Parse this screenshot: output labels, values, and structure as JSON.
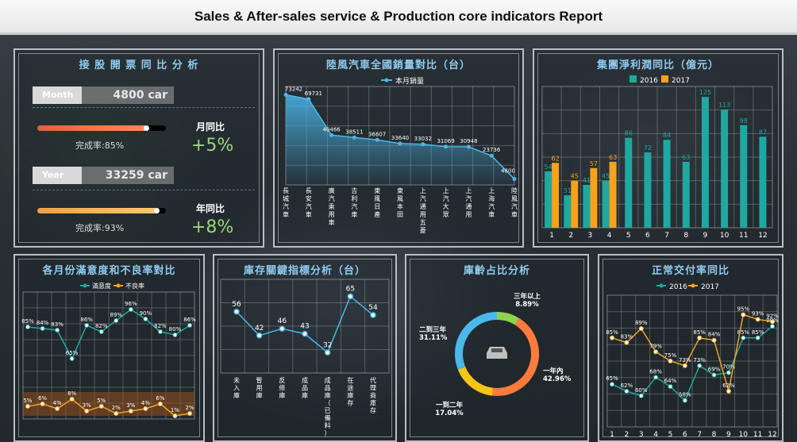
{
  "report_title": "Sales & After-sales service & Production core indicators Report",
  "kpi": {
    "title": "接 股 開 票 同 比 分 析",
    "month_label": "Month",
    "month_value": "4800 car",
    "month_progress_text": "完成率:85%",
    "month_progress": 0.85,
    "month_growth_label": "月同比",
    "month_growth_value": "+5%",
    "year_label": "Year",
    "year_value": "33259 car",
    "year_progress_text": "完成率:93%",
    "year_progress": 0.93,
    "year_growth_label": "年同比",
    "year_growth_value": "+8%"
  },
  "colors": {
    "teal": "#1fa8a0",
    "orange": "#f7a21b",
    "blue": "#4ab8ea",
    "green_bar": "#92d050",
    "orange_bar": "#ff7a3d",
    "yellow": "#f5c518",
    "bg_panel": "#1e262c"
  },
  "chart_data": [
    {
      "id": "sales",
      "type": "area",
      "title": "陸風汽車全國銷量對比（台）",
      "legend": [
        "本月銷量"
      ],
      "categories": [
        "長城汽車",
        "長安汽車",
        "廣汽乘用車",
        "吉利汽車",
        "東風日產",
        "東風本田",
        "上汽通用五菱",
        "上汽大眾",
        "上汽通用",
        "上海汽車",
        "陸風汽車"
      ],
      "values": [
        73242,
        69731,
        40466,
        38511,
        36607,
        33640,
        33032,
        31069,
        30948,
        23736,
        4800
      ],
      "ylim": [
        0,
        80000
      ]
    },
    {
      "id": "profit",
      "type": "bar",
      "title": "集團淨利潤同比（億元）",
      "categories": [
        "1",
        "2",
        "3",
        "4",
        "5",
        "6",
        "7",
        "8",
        "9",
        "10",
        "11",
        "12"
      ],
      "series": [
        {
          "name": "2016",
          "values": [
            54,
            31,
            41,
            45,
            86,
            72,
            84,
            63,
            125,
            113,
            98,
            87
          ]
        },
        {
          "name": "2017",
          "values": [
            62,
            45,
            57,
            63,
            null,
            null,
            null,
            null,
            null,
            null,
            null,
            null
          ]
        }
      ],
      "ylim": [
        0,
        135
      ]
    },
    {
      "id": "satisfaction",
      "type": "line",
      "title": "各月份滿意度和不良率對比",
      "categories": [
        "1",
        "2",
        "3",
        "4",
        "5",
        "6",
        "7",
        "8",
        "9",
        "10",
        "11",
        "12"
      ],
      "series": [
        {
          "name": "滿意度",
          "values": [
            85,
            84,
            83,
            65,
            86,
            82,
            89,
            96,
            90,
            82,
            80,
            86
          ],
          "labels": [
            "85%",
            "84%",
            "83%",
            "65%",
            "86%",
            "82%",
            "89%",
            "96%",
            "90%",
            "82%",
            "80%",
            "86%"
          ]
        },
        {
          "name": "不良率",
          "values": [
            5,
            6,
            4,
            8,
            3,
            5,
            2,
            3,
            4,
            6,
            1,
            2
          ],
          "labels": [
            "5%",
            "6%",
            "4%",
            "8%",
            "3%",
            "5%",
            "2%",
            "3%",
            "4%",
            "6%",
            "1%",
            "2%"
          ]
        }
      ]
    },
    {
      "id": "inventory",
      "type": "line",
      "title": "庫存關鍵指標分析（台）",
      "categories": [
        "未入庫",
        "暫用庫",
        "反修庫",
        "成品庫",
        "成品庫（已備料）",
        "在途庫存",
        "代理商庫存"
      ],
      "values": [
        56,
        42,
        46,
        43,
        32,
        65,
        54
      ],
      "ylim": [
        20,
        75
      ]
    },
    {
      "id": "age",
      "type": "pie",
      "title": "庫齡占比分析",
      "slices": [
        {
          "label": "一年內",
          "value": 42.96,
          "text": "42.96%"
        },
        {
          "label": "一到二年",
          "value": 17.04,
          "text": "17.04%"
        },
        {
          "label": "二到三年",
          "value": 31.11,
          "text": "31.11%"
        },
        {
          "label": "三年以上",
          "value": 8.89,
          "text": "8.89%"
        }
      ]
    },
    {
      "id": "delivery",
      "type": "line",
      "title": "正常交付率同比",
      "categories": [
        "1",
        "2",
        "3",
        "4",
        "5",
        "6",
        "7",
        "8",
        "9",
        "10",
        "11",
        "12"
      ],
      "series": [
        {
          "name": "2016",
          "values": [
            65,
            62,
            60,
            68,
            64,
            58,
            73,
            69,
            70,
            85,
            85,
            90
          ],
          "labels": [
            "65%",
            "62%",
            "60%",
            "68%",
            "64%",
            "58%",
            "73%",
            "69%",
            "70%",
            "85%",
            "85%",
            "90%"
          ]
        },
        {
          "name": "2017",
          "values": [
            85,
            83,
            89,
            79,
            75,
            73,
            85,
            84,
            62,
            95,
            93,
            92
          ],
          "labels": [
            "85%",
            "83%",
            "89%",
            "79%",
            "75%",
            "73%",
            "85%",
            "84%",
            "62%",
            "95%",
            "93%",
            "92%"
          ]
        }
      ],
      "ylim": [
        50,
        100
      ]
    }
  ]
}
